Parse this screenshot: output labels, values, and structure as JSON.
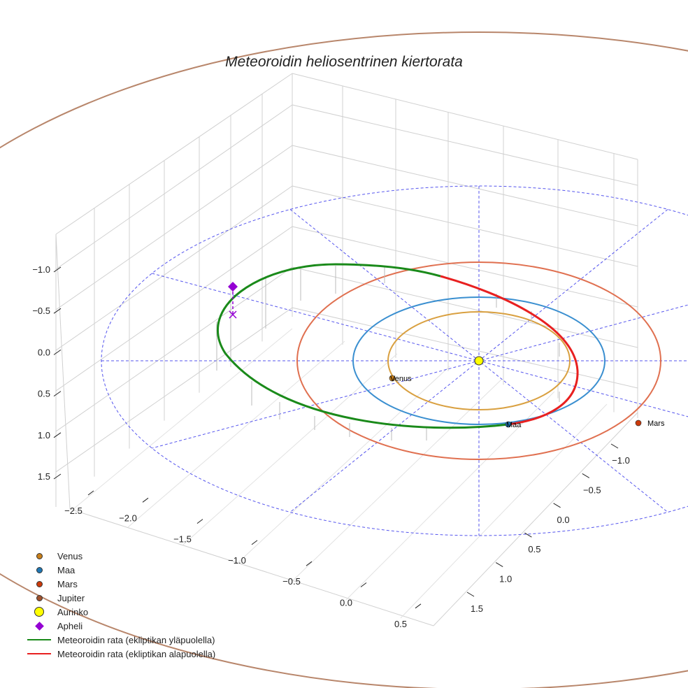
{
  "chart_data": {
    "type": "3d-line",
    "title": "Meteoroidin heliosentrinen kiertorata",
    "x_ticks": [
      "−2.5",
      "−2.0",
      "−1.5",
      "−1.0",
      "−0.5",
      "0.0",
      "0.5"
    ],
    "y_ticks": [
      "−1.0",
      "−0.5",
      "0.0",
      "0.5",
      "1.0",
      "1.5"
    ],
    "z_ticks": [
      "−1.0",
      "−0.5",
      "0.0",
      "0.5",
      "1.0",
      "1.5"
    ],
    "xlim": [
      -2.6,
      0.6
    ],
    "ylim": [
      -1.3,
      1.8
    ],
    "zlim": [
      -1.3,
      1.8
    ],
    "grid": true,
    "planets": [
      {
        "name": "Venus",
        "orbit_radius_au": 0.72,
        "color": "#c97f1a",
        "orbit_color": "#d9a040"
      },
      {
        "name": "Maa",
        "orbit_radius_au": 1.0,
        "color": "#1f77b4",
        "orbit_color": "#3a8fd0"
      },
      {
        "name": "Mars",
        "orbit_radius_au": 1.52,
        "color": "#cc3a0a",
        "orbit_color": "#e07050"
      },
      {
        "name": "Jupiter",
        "orbit_radius_au": 5.2,
        "color": "#a0522d",
        "orbit_color": "#b8866b"
      }
    ],
    "sun": {
      "name": "Aurinko",
      "color": "#ffff00"
    },
    "aphelion": {
      "name": "Apheli",
      "color": "#9400d3"
    },
    "series": [
      {
        "name": "Meteoroidin rata (ekliptikan yläpuolella)",
        "color": "#1a8a1a"
      },
      {
        "name": "Meteoroidin rata (ekliptikan alapuolella)",
        "color": "#e82020"
      }
    ],
    "legend_position": "bottom-left"
  }
}
